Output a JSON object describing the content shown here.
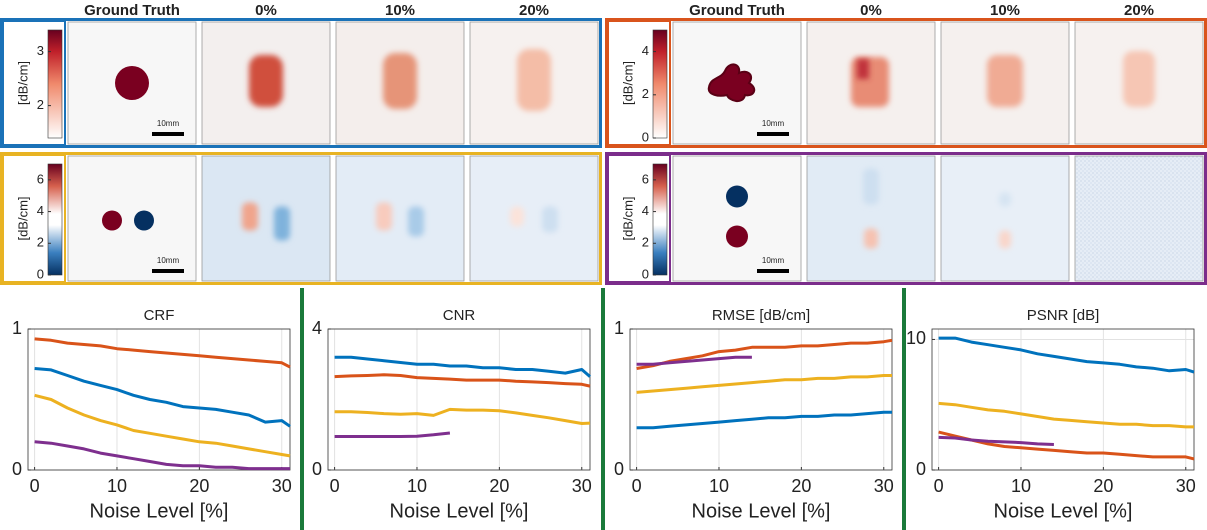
{
  "image_panels": [
    {
      "headers": [
        "Ground Truth",
        "0%",
        "10%",
        "20%"
      ],
      "colorbar_label": "[dB/cm]",
      "colorbar_lim": [
        1.4,
        3.4
      ],
      "colorbar_ticks": [
        2,
        3
      ],
      "scale_bar": "10mm",
      "frame_color": "#1a72b8"
    },
    {
      "headers": [
        "Ground Truth",
        "0%",
        "10%",
        "20%"
      ],
      "colorbar_label": "[dB/cm]",
      "colorbar_lim": [
        0,
        5
      ],
      "colorbar_ticks": [
        0,
        2,
        4
      ],
      "scale_bar": "10mm",
      "frame_color": "#d9541c"
    },
    {
      "colorbar_label": "[dB/cm]",
      "colorbar_lim": [
        0,
        7
      ],
      "colorbar_ticks": [
        0,
        2,
        4,
        6
      ],
      "scale_bar": "10mm",
      "frame_color": "#e8b323"
    },
    {
      "colorbar_label": "[dB/cm]",
      "colorbar_lim": [
        0,
        7
      ],
      "colorbar_ticks": [
        0,
        2,
        4,
        6
      ],
      "scale_bar": "10mm",
      "frame_color": "#7b2d8b"
    }
  ],
  "chart_data": [
    {
      "type": "line",
      "title": "CRF",
      "x_label": "Noise Level [%]",
      "x": [
        0,
        2,
        4,
        6,
        8,
        10,
        12,
        14,
        16,
        18,
        20,
        22,
        24,
        26,
        28,
        30,
        31
      ],
      "xlim": [
        -0.8,
        31
      ],
      "xticks": [
        0,
        10,
        20,
        30
      ],
      "ylim": [
        0,
        1
      ],
      "yticks": [
        0,
        1
      ],
      "grid": true,
      "series": [
        {
          "color": "#d95319",
          "values": [
            0.93,
            0.92,
            0.9,
            0.89,
            0.88,
            0.86,
            0.85,
            0.84,
            0.83,
            0.82,
            0.81,
            0.8,
            0.79,
            0.78,
            0.77,
            0.76,
            0.73
          ]
        },
        {
          "color": "#0072bd",
          "values": [
            0.72,
            0.71,
            0.67,
            0.63,
            0.6,
            0.57,
            0.53,
            0.5,
            0.48,
            0.45,
            0.44,
            0.43,
            0.41,
            0.39,
            0.34,
            0.35,
            0.31
          ]
        },
        {
          "color": "#edb120",
          "values": [
            0.53,
            0.5,
            0.44,
            0.39,
            0.35,
            0.32,
            0.28,
            0.26,
            0.24,
            0.22,
            0.2,
            0.19,
            0.17,
            0.15,
            0.13,
            0.11,
            0.1
          ]
        },
        {
          "color": "#7e2f8e",
          "values": [
            0.2,
            0.19,
            0.17,
            0.15,
            0.12,
            0.1,
            0.08,
            0.06,
            0.04,
            0.03,
            0.03,
            0.02,
            0.02,
            0.01,
            0.01,
            0.01,
            0.01
          ]
        }
      ]
    },
    {
      "type": "line",
      "title": "CNR",
      "x_label": "Noise Level [%]",
      "x": [
        0,
        2,
        4,
        6,
        8,
        10,
        12,
        14,
        16,
        18,
        20,
        22,
        24,
        26,
        28,
        30,
        31
      ],
      "xlim": [
        -0.8,
        31
      ],
      "xticks": [
        0,
        10,
        20,
        30
      ],
      "ylim": [
        0,
        4
      ],
      "yticks": [
        0,
        4
      ],
      "grid": true,
      "series": [
        {
          "color": "#0072bd",
          "values": [
            3.2,
            3.2,
            3.15,
            3.1,
            3.05,
            3.0,
            3.0,
            2.95,
            2.95,
            2.9,
            2.9,
            2.85,
            2.85,
            2.8,
            2.75,
            2.85,
            2.65
          ]
        },
        {
          "color": "#d95319",
          "values": [
            2.65,
            2.67,
            2.68,
            2.7,
            2.68,
            2.62,
            2.6,
            2.58,
            2.55,
            2.55,
            2.55,
            2.52,
            2.5,
            2.48,
            2.45,
            2.43,
            2.38
          ]
        },
        {
          "color": "#edb120",
          "values": [
            1.65,
            1.65,
            1.63,
            1.6,
            1.58,
            1.6,
            1.55,
            1.72,
            1.7,
            1.7,
            1.68,
            1.62,
            1.55,
            1.48,
            1.4,
            1.32,
            1.33
          ]
        },
        {
          "color": "#7e2f8e",
          "values": [
            0.95,
            0.95,
            0.95,
            0.95,
            0.95,
            0.96,
            1.0,
            1.05,
            null,
            null,
            null,
            null,
            null,
            null,
            null,
            null,
            null
          ]
        }
      ]
    },
    {
      "type": "line",
      "title": "RMSE [dB/cm]",
      "x_label": "Noise Level [%]",
      "x": [
        0,
        2,
        4,
        6,
        8,
        10,
        12,
        14,
        16,
        18,
        20,
        22,
        24,
        26,
        28,
        30,
        31
      ],
      "xlim": [
        -0.8,
        31
      ],
      "xticks": [
        0,
        10,
        20,
        30
      ],
      "ylim": [
        0,
        1
      ],
      "yticks": [
        0,
        1
      ],
      "grid": true,
      "series": [
        {
          "color": "#d95319",
          "values": [
            0.72,
            0.74,
            0.77,
            0.79,
            0.81,
            0.84,
            0.85,
            0.87,
            0.87,
            0.87,
            0.88,
            0.88,
            0.89,
            0.9,
            0.9,
            0.91,
            0.92
          ]
        },
        {
          "color": "#7e2f8e",
          "values": [
            0.75,
            0.75,
            0.76,
            0.77,
            0.78,
            0.79,
            0.8,
            0.8,
            null,
            null,
            null,
            null,
            null,
            null,
            null,
            null,
            null
          ]
        },
        {
          "color": "#edb120",
          "values": [
            0.55,
            0.56,
            0.57,
            0.58,
            0.59,
            0.6,
            0.61,
            0.62,
            0.63,
            0.64,
            0.64,
            0.65,
            0.65,
            0.66,
            0.66,
            0.67,
            0.67
          ]
        },
        {
          "color": "#0072bd",
          "values": [
            0.3,
            0.3,
            0.31,
            0.32,
            0.33,
            0.34,
            0.35,
            0.36,
            0.37,
            0.37,
            0.38,
            0.38,
            0.39,
            0.39,
            0.4,
            0.41,
            0.41
          ]
        }
      ]
    },
    {
      "type": "line",
      "title": "PSNR [dB]",
      "x_label": "Noise Level [%]",
      "x": [
        0,
        2,
        4,
        6,
        8,
        10,
        12,
        14,
        16,
        18,
        20,
        22,
        24,
        26,
        28,
        30,
        31
      ],
      "xlim": [
        -0.8,
        31
      ],
      "xticks": [
        0,
        10,
        20,
        30
      ],
      "ylim": [
        0,
        10.8
      ],
      "yticks": [
        0,
        10
      ],
      "grid": true,
      "series": [
        {
          "color": "#0072bd",
          "values": [
            10.1,
            10.1,
            9.8,
            9.6,
            9.4,
            9.2,
            8.9,
            8.7,
            8.5,
            8.3,
            8.2,
            8.1,
            7.9,
            7.8,
            7.6,
            7.7,
            7.5
          ]
        },
        {
          "color": "#edb120",
          "values": [
            5.1,
            5.0,
            4.8,
            4.6,
            4.5,
            4.3,
            4.1,
            3.9,
            3.8,
            3.7,
            3.6,
            3.5,
            3.5,
            3.4,
            3.4,
            3.3,
            3.3
          ]
        },
        {
          "color": "#d95319",
          "values": [
            2.9,
            2.6,
            2.3,
            2.0,
            1.8,
            1.7,
            1.6,
            1.5,
            1.4,
            1.3,
            1.3,
            1.2,
            1.1,
            1.0,
            1.0,
            1.0,
            0.85
          ]
        },
        {
          "color": "#7e2f8e",
          "values": [
            2.5,
            2.45,
            2.3,
            2.2,
            2.15,
            2.1,
            2.0,
            1.95,
            null,
            null,
            null,
            null,
            null,
            null,
            null,
            null,
            null
          ]
        }
      ]
    }
  ]
}
